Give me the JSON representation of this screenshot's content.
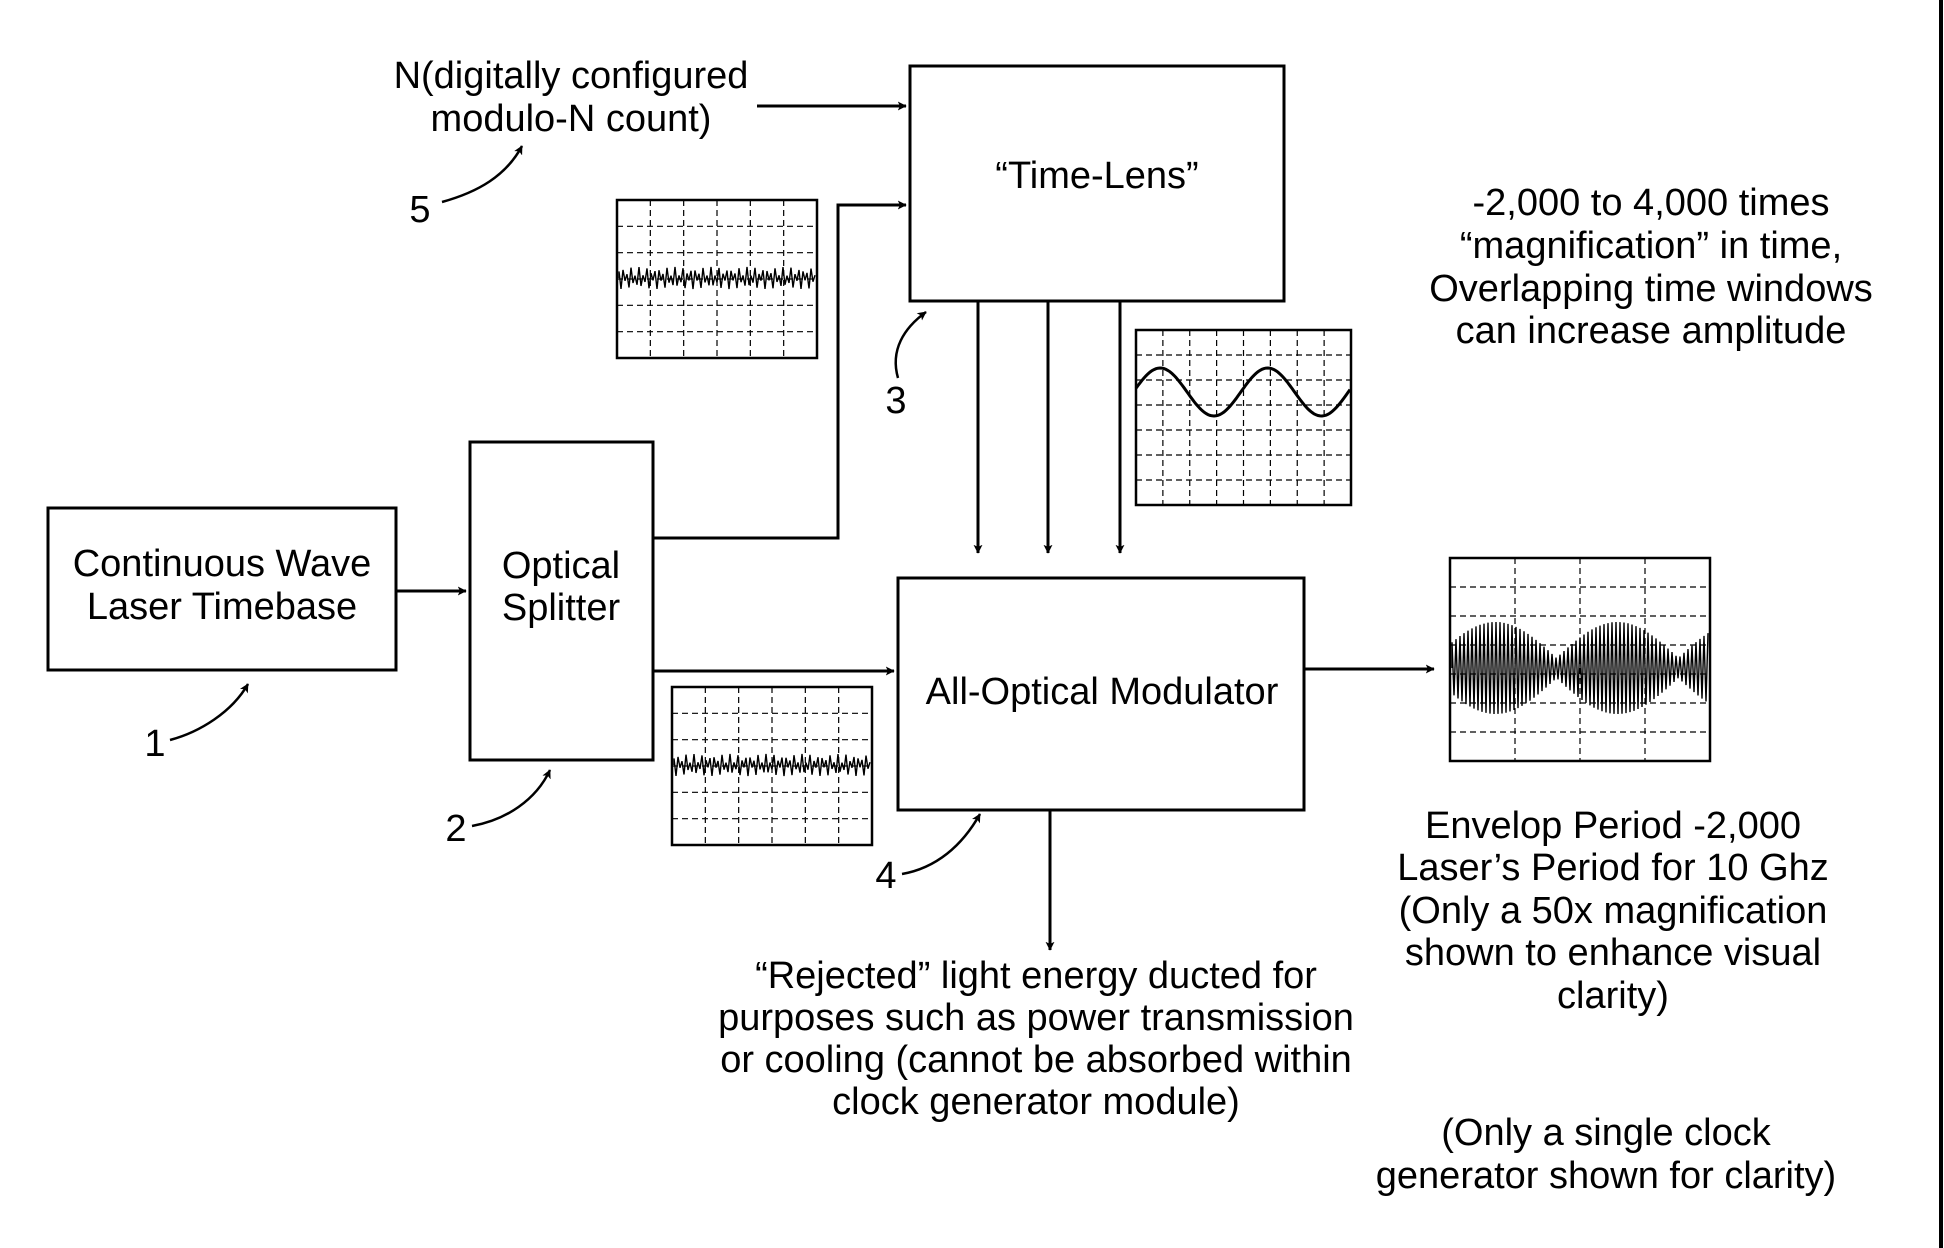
{
  "blocks": {
    "laser": {
      "line1": "Continuous Wave",
      "line2": "Laser Timebase"
    },
    "splitter": {
      "line1": "Optical",
      "line2": "Splitter"
    },
    "time_lens": {
      "label": "“Time-Lens”"
    },
    "modulator": {
      "label": "All-Optical Modulator"
    }
  },
  "inputs": {
    "n_count": {
      "line1": "N(digitally configured",
      "line2": "modulo-N count)"
    }
  },
  "reference_numerals": {
    "r1": "1",
    "r2": "2",
    "r3": "3",
    "r4": "4",
    "r5": "5"
  },
  "notes": {
    "magnification": [
      "-2,000 to 4,000 times",
      "“magnification” in time,",
      "Overlapping time windows",
      "can increase amplitude"
    ],
    "rejected": [
      "“Rejected” light energy ducted for",
      "purposes such as power transmission",
      "or cooling (cannot be absorbed within",
      "clock generator module)"
    ],
    "envelope": [
      "Envelop Period -2,000",
      "Laser’s Period for 10 Ghz",
      "(Only a 50x magnification",
      "shown to enhance visual",
      "clarity)"
    ],
    "single_clock": [
      "(Only a single clock",
      "generator shown for clarity)"
    ]
  }
}
